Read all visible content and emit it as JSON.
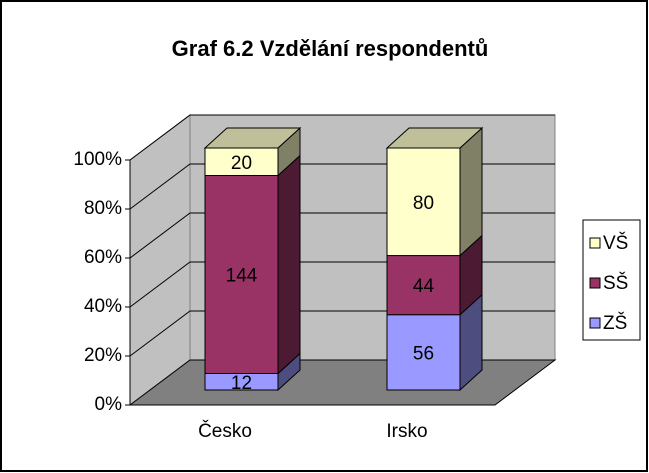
{
  "chart_data": {
    "type": "bar",
    "stacking": "percent",
    "title": "Graf 6.2 Vzdělání respondentů",
    "categories": [
      "Česko",
      "Irsko"
    ],
    "series": [
      {
        "name": "ZŠ",
        "color": "#9999ff",
        "values": [
          12,
          56
        ]
      },
      {
        "name": "SŠ",
        "color": "#993366",
        "values": [
          144,
          44
        ]
      },
      {
        "name": "VŠ",
        "color": "#ffffcc",
        "values": [
          20,
          80
        ]
      }
    ],
    "ylim": [
      0,
      100
    ],
    "yticks": [
      {
        "value": 0,
        "label": "0%"
      },
      {
        "value": 20,
        "label": "20%"
      },
      {
        "value": 40,
        "label": "40%"
      },
      {
        "value": 60,
        "label": "60%"
      },
      {
        "value": 80,
        "label": "80%"
      },
      {
        "value": 100,
        "label": "100%"
      }
    ],
    "grid": true,
    "legend": "right"
  }
}
